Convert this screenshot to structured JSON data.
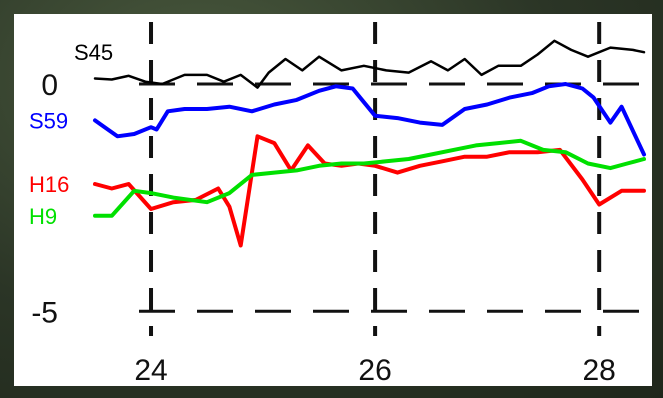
{
  "chart_data": {
    "type": "line",
    "title": "",
    "xlabel": "",
    "ylabel": "",
    "xlim": [
      23.5,
      28.4
    ],
    "ylim": [
      -5.5,
      1.1
    ],
    "x_ticks": [
      24,
      26,
      28
    ],
    "x_tick_labels": [
      "24",
      "26",
      "28"
    ],
    "y_ticks": [
      0,
      -5
    ],
    "y_tick_labels": [
      "0",
      "-5"
    ],
    "grid": "dashed lines at x ticks and y ticks",
    "legend": "series labels at left edge",
    "series": [
      {
        "name": "S45",
        "color": "#000000",
        "label_y": 0.7,
        "x": [
          23.5,
          23.65,
          23.8,
          23.95,
          24.1,
          24.3,
          24.5,
          24.65,
          24.8,
          24.95,
          25.05,
          25.2,
          25.35,
          25.5,
          25.7,
          25.9,
          26.1,
          26.3,
          26.5,
          26.65,
          26.8,
          26.95,
          27.1,
          27.3,
          27.45,
          27.6,
          27.75,
          27.9,
          28.1,
          28.3,
          28.4
        ],
        "values": [
          0.12,
          0.1,
          0.18,
          0.05,
          0.0,
          0.2,
          0.2,
          0.05,
          0.2,
          -0.08,
          0.25,
          0.55,
          0.3,
          0.6,
          0.3,
          0.4,
          0.3,
          0.25,
          0.5,
          0.3,
          0.55,
          0.2,
          0.4,
          0.4,
          0.65,
          0.95,
          0.75,
          0.6,
          0.8,
          0.75,
          0.7
        ]
      },
      {
        "name": "S59",
        "color": "#0000ff",
        "label_y": -0.8,
        "x": [
          23.5,
          23.7,
          23.85,
          24.0,
          24.05,
          24.15,
          24.3,
          24.5,
          24.7,
          24.9,
          25.1,
          25.3,
          25.5,
          25.65,
          25.8,
          25.9,
          26.0,
          26.2,
          26.4,
          26.6,
          26.8,
          27.0,
          27.2,
          27.4,
          27.55,
          27.7,
          27.85,
          27.95,
          28.1,
          28.2,
          28.4
        ],
        "values": [
          -0.8,
          -1.15,
          -1.1,
          -0.95,
          -1.0,
          -0.6,
          -0.55,
          -0.55,
          -0.5,
          -0.6,
          -0.45,
          -0.35,
          -0.15,
          -0.05,
          -0.1,
          -0.4,
          -0.7,
          -0.75,
          -0.85,
          -0.9,
          -0.55,
          -0.45,
          -0.3,
          -0.2,
          -0.05,
          0.0,
          -0.1,
          -0.3,
          -0.85,
          -0.5,
          -1.55
        ]
      },
      {
        "name": "H16",
        "color": "#ff0000",
        "label_y": -2.2,
        "x": [
          23.5,
          23.65,
          23.8,
          24.0,
          24.2,
          24.4,
          24.6,
          24.7,
          24.8,
          24.95,
          25.1,
          25.25,
          25.4,
          25.55,
          25.7,
          25.85,
          26.0,
          26.2,
          26.4,
          26.6,
          26.8,
          27.0,
          27.2,
          27.45,
          27.65,
          27.85,
          28.0,
          28.2,
          28.4
        ],
        "values": [
          -2.2,
          -2.3,
          -2.2,
          -2.75,
          -2.6,
          -2.55,
          -2.3,
          -2.7,
          -3.55,
          -1.15,
          -1.3,
          -1.9,
          -1.35,
          -1.75,
          -1.8,
          -1.75,
          -1.8,
          -1.95,
          -1.8,
          -1.7,
          -1.6,
          -1.6,
          -1.5,
          -1.5,
          -1.45,
          -2.1,
          -2.65,
          -2.35,
          -2.35
        ]
      },
      {
        "name": "H9",
        "color": "#00e000",
        "label_y": -2.9,
        "x": [
          23.5,
          23.65,
          23.85,
          24.0,
          24.2,
          24.5,
          24.7,
          24.9,
          25.1,
          25.3,
          25.5,
          25.7,
          25.9,
          26.1,
          26.3,
          26.5,
          26.7,
          26.9,
          27.1,
          27.3,
          27.5,
          27.7,
          27.9,
          28.1,
          28.25,
          28.4
        ],
        "values": [
          -2.9,
          -2.9,
          -2.35,
          -2.4,
          -2.5,
          -2.6,
          -2.4,
          -2.0,
          -1.95,
          -1.9,
          -1.8,
          -1.75,
          -1.75,
          -1.7,
          -1.65,
          -1.55,
          -1.45,
          -1.35,
          -1.3,
          -1.25,
          -1.45,
          -1.5,
          -1.75,
          -1.85,
          -1.75,
          -1.65
        ]
      }
    ]
  }
}
